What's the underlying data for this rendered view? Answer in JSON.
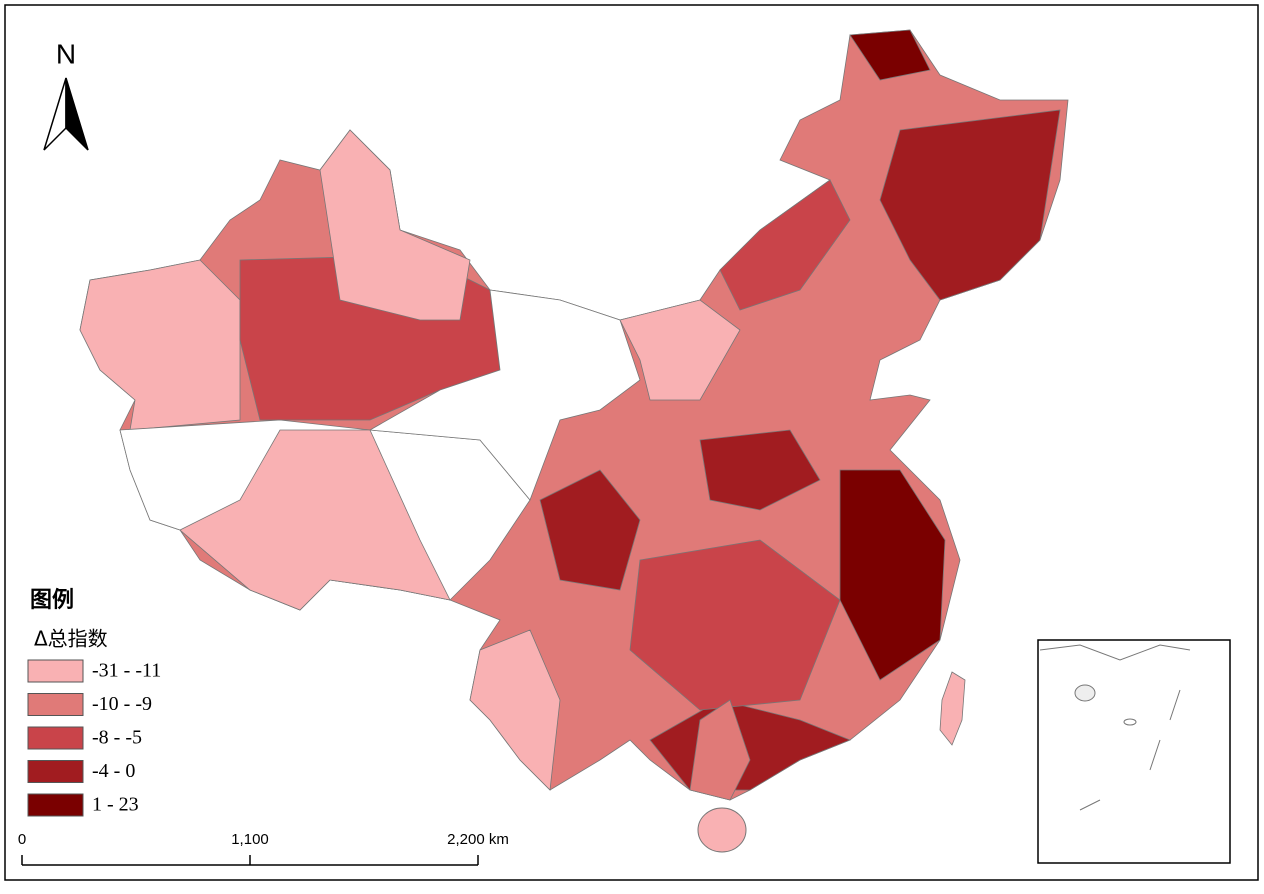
{
  "north_arrow": {
    "label": "N"
  },
  "legend": {
    "title": "图例",
    "subtitle": "Δ总指数",
    "classes": [
      {
        "label": "-31 - -11",
        "color": "#f9b1b3"
      },
      {
        "label": "-10 - -9",
        "color": "#e07a78"
      },
      {
        "label": "-8 - -5",
        "color": "#c9444a"
      },
      {
        "label": "-4 - 0",
        "color": "#a11c20"
      },
      {
        "label": "1 - 23",
        "color": "#7a0000"
      }
    ]
  },
  "scale_bar": {
    "labels": [
      "0",
      "1,100",
      "2,200 km"
    ]
  }
}
